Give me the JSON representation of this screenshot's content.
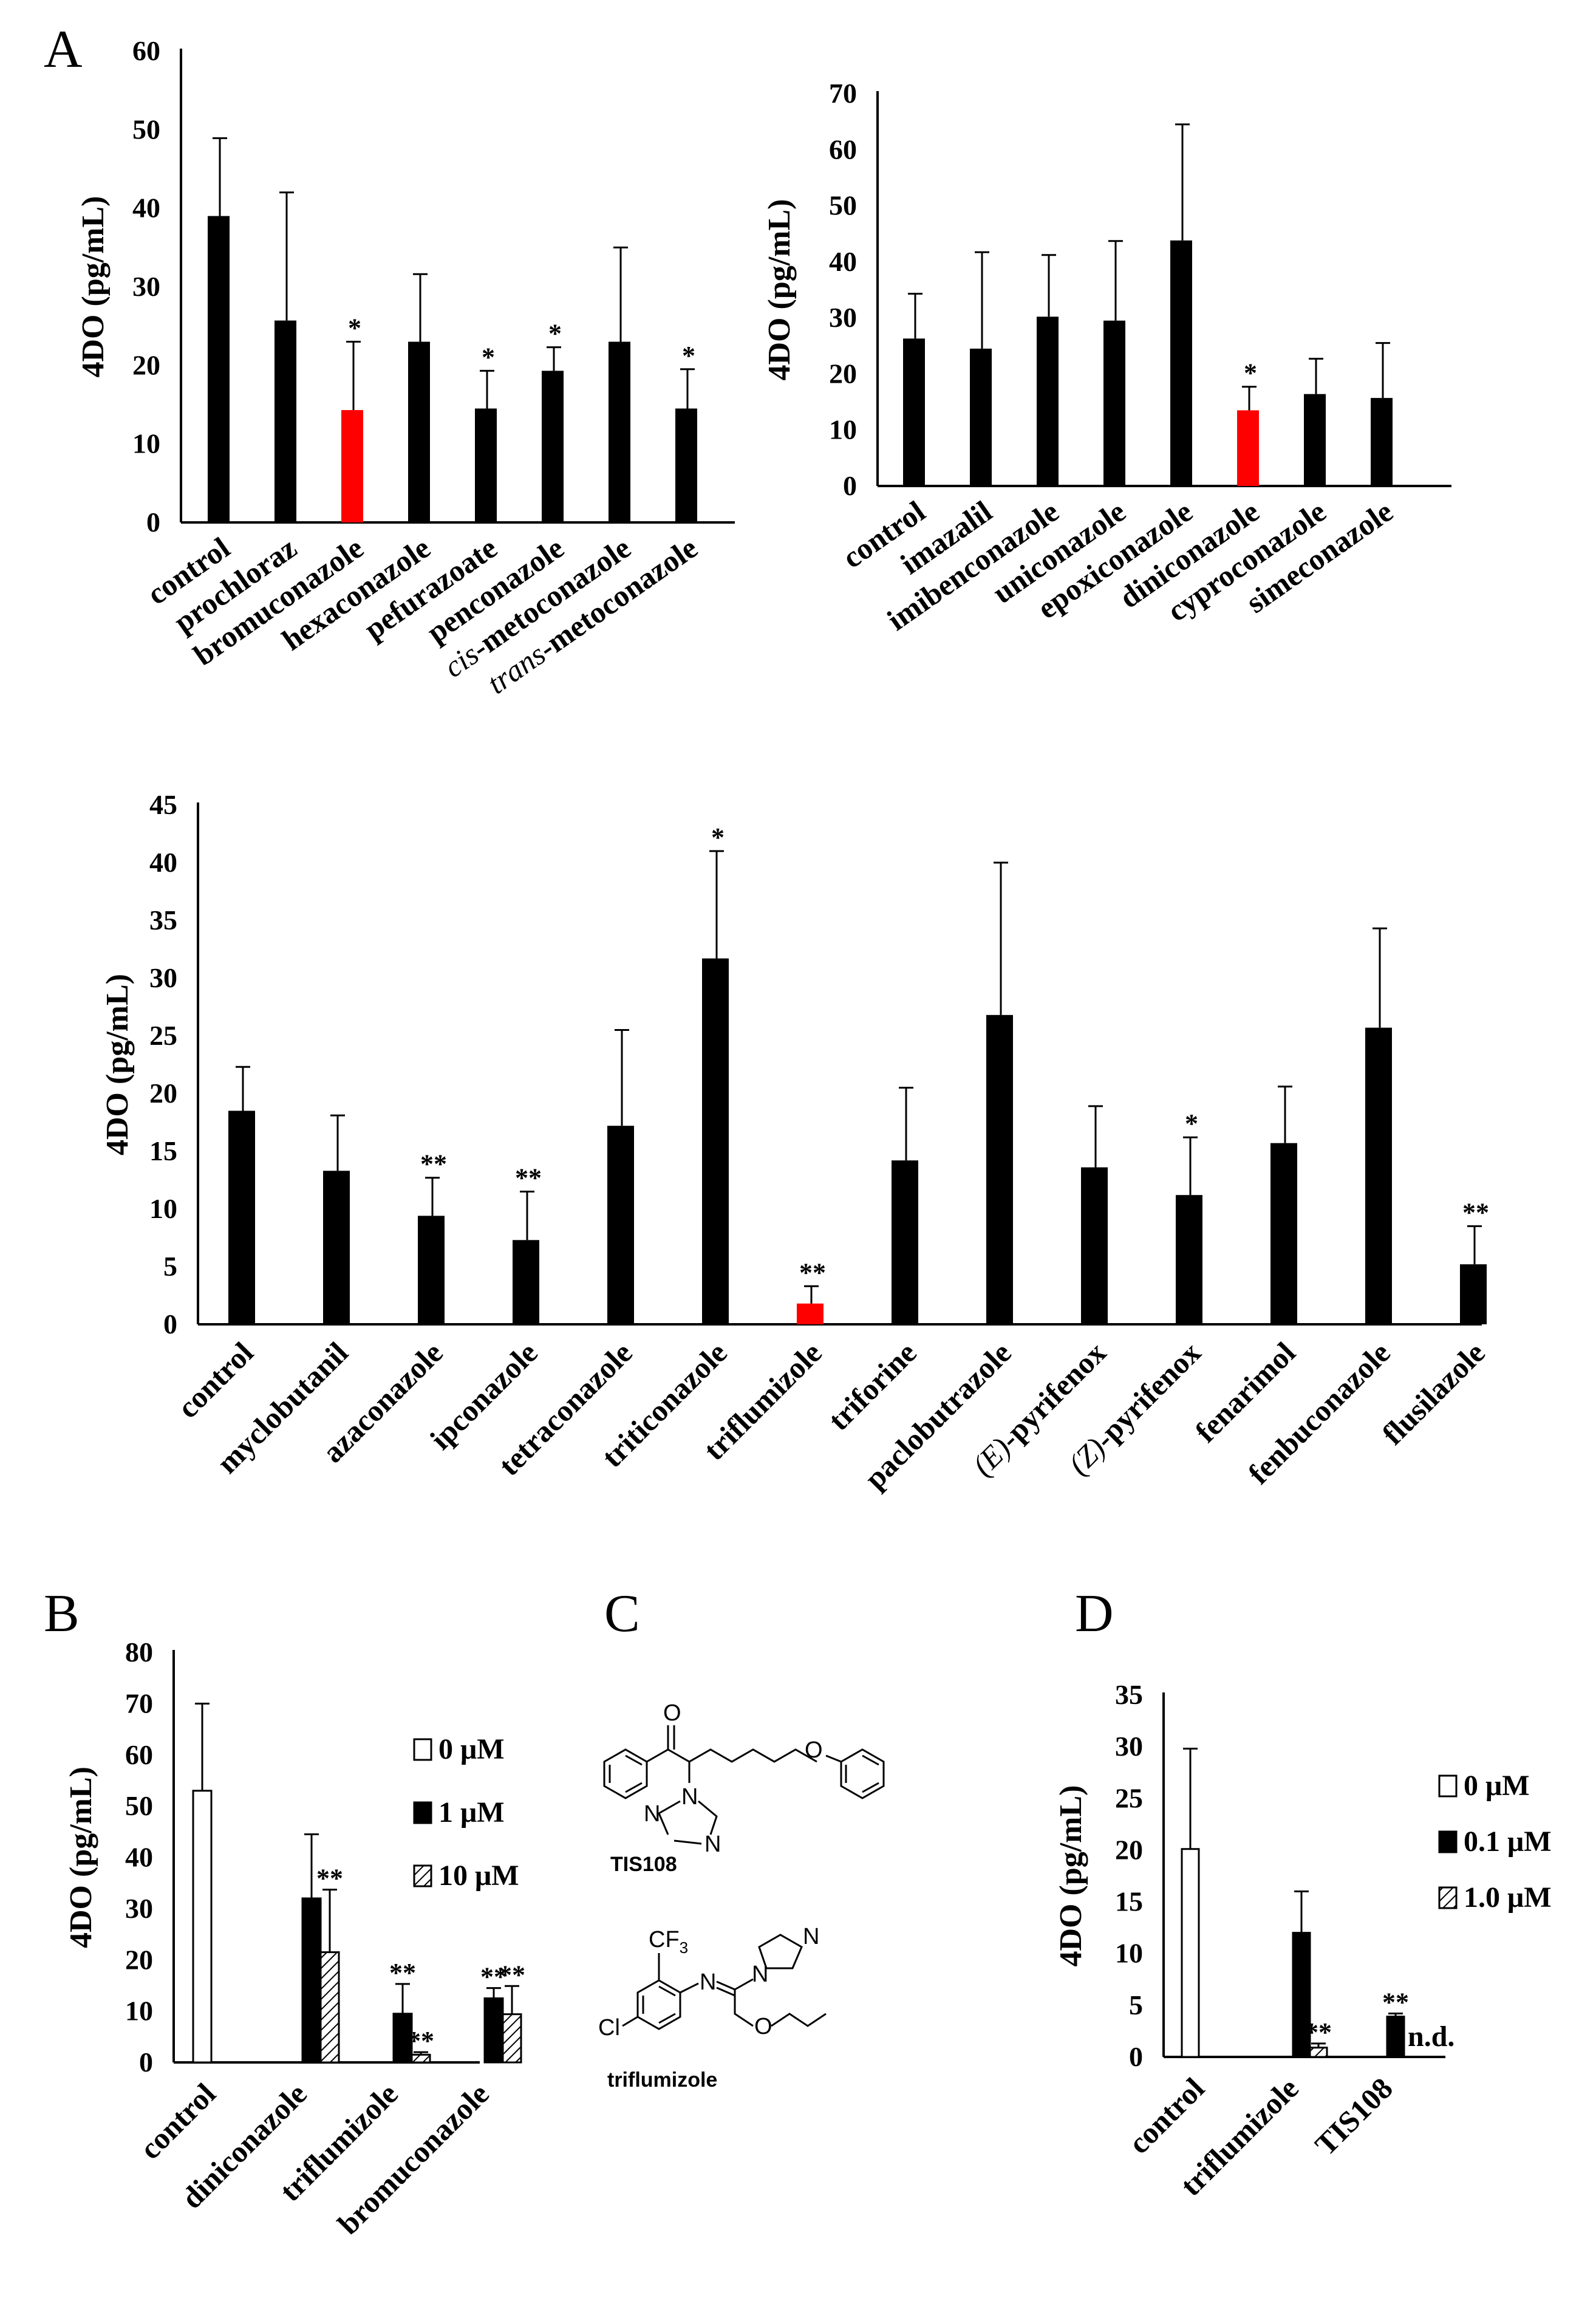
{
  "panels": {
    "A": "A",
    "B": "B",
    "C": "C",
    "D": "D"
  },
  "colors": {
    "bar": "#000000",
    "highlight": "#ff0000",
    "open": "#ffffff"
  },
  "chart_data": [
    {
      "type": "bar",
      "id": "A1",
      "ylabel": "4DO (pg/mL)",
      "ylim": [
        0,
        60
      ],
      "yticks": [
        0,
        10,
        20,
        30,
        40,
        50,
        60
      ],
      "categories": [
        "control",
        "prochloraz",
        "bromuconazole",
        "hexaconazole",
        "pefurazoate",
        "penconazole",
        "cis-metoconazole",
        "trans-metoconazole"
      ],
      "values": [
        39,
        25.7,
        14.3,
        23,
        14.5,
        19.3,
        23,
        14.5
      ],
      "errors": [
        9.9,
        16.3,
        8.7,
        8.6,
        4.8,
        3.0,
        12,
        5.0
      ],
      "stars": [
        "",
        "",
        "*",
        "",
        "*",
        "*",
        "",
        "*"
      ],
      "highlight": [
        2
      ]
    },
    {
      "type": "bar",
      "id": "A2",
      "ylabel": "4DO (pg/mL)",
      "ylim": [
        0,
        70
      ],
      "yticks": [
        0,
        10,
        20,
        30,
        40,
        50,
        60,
        70
      ],
      "categories": [
        "control",
        "imazalil",
        "imibenconazole",
        "uniconazole",
        "epoxiconazole",
        "diniconazole",
        "cyproconazole",
        "simeconazole"
      ],
      "values": [
        26.3,
        24.5,
        30.2,
        29.5,
        43.8,
        13.5,
        16.4,
        15.7
      ],
      "errors": [
        8.0,
        17.2,
        11.0,
        14.2,
        20.7,
        4.2,
        6.3,
        9.8
      ],
      "stars": [
        "",
        "",
        "",
        "",
        "",
        "*",
        "",
        ""
      ],
      "highlight": [
        5
      ]
    },
    {
      "type": "bar",
      "id": "A3",
      "ylabel": "4DO (pg/mL)",
      "ylim": [
        0,
        45
      ],
      "yticks": [
        0,
        5,
        10,
        15,
        20,
        25,
        30,
        35,
        40,
        45
      ],
      "categories": [
        "control",
        "myclobutanil",
        "azaconazole",
        "ipconazole",
        "tetraconazole",
        "triticonazole",
        "triflumizole",
        "triforine",
        "paclobutrazole",
        "(E)-pyrifenox",
        "(Z)-pyrifenox",
        "fenarimol",
        "fenbuconazole",
        "flusilazole"
      ],
      "values": [
        18.5,
        13.3,
        9.4,
        7.3,
        17.2,
        31.7,
        1.8,
        14.2,
        26.8,
        13.6,
        11.2,
        15.7,
        25.7,
        5.2
      ],
      "errors": [
        3.8,
        4.8,
        3.3,
        4.2,
        8.3,
        9.3,
        1.5,
        6.3,
        13.2,
        5.3,
        5.0,
        4.9,
        8.6,
        3.3
      ],
      "stars": [
        "",
        "",
        "**",
        "**",
        "",
        "*",
        "**",
        "",
        "",
        "",
        "*",
        "",
        "",
        "**"
      ],
      "highlight": [
        6
      ]
    },
    {
      "type": "bar",
      "id": "B",
      "ylabel": "4DO (pg/mL)",
      "ylim": [
        0,
        80
      ],
      "yticks": [
        0,
        10,
        20,
        30,
        40,
        50,
        60,
        70,
        80
      ],
      "categories": [
        "control",
        "diniconazole",
        "triflumizole",
        "bromuconazole"
      ],
      "legend": [
        "0 μM",
        "1 μM",
        "10 μM"
      ],
      "series": [
        {
          "name": "0 μM",
          "values": [
            53,
            null,
            null,
            null
          ],
          "errors": [
            17,
            null,
            null,
            null
          ],
          "stars": [
            "",
            "",
            "",
            ""
          ]
        },
        {
          "name": "1 μM",
          "values": [
            null,
            32,
            9.5,
            12.5
          ],
          "errors": [
            null,
            12.5,
            5.8,
            2.0
          ],
          "stars": [
            "",
            "",
            "**",
            "**"
          ]
        },
        {
          "name": "10 μM",
          "values": [
            null,
            21.5,
            1.5,
            9.4
          ],
          "errors": [
            null,
            12.2,
            0.5,
            5.5
          ],
          "stars": [
            "",
            "**",
            "**",
            "**"
          ]
        }
      ]
    },
    {
      "type": "bar",
      "id": "D",
      "ylabel": "4DO (pg/mL)",
      "ylim": [
        0,
        35
      ],
      "yticks": [
        0,
        5,
        10,
        15,
        20,
        25,
        30,
        35
      ],
      "categories": [
        "control",
        "triflumizole",
        "TIS108"
      ],
      "legend": [
        "0 μM",
        "0.1 μM",
        "1.0 μM"
      ],
      "series": [
        {
          "name": "0 μM",
          "values": [
            20.1,
            null,
            null
          ],
          "errors": [
            9.7,
            null,
            null
          ],
          "stars": [
            "",
            "",
            ""
          ]
        },
        {
          "name": "0.1 μM",
          "values": [
            null,
            12,
            3.9
          ],
          "errors": [
            null,
            4.0,
            0.3
          ],
          "stars": [
            "",
            "",
            "**"
          ]
        },
        {
          "name": "1.0 μM",
          "values": [
            null,
            0.9,
            null
          ],
          "errors": [
            null,
            0.4,
            null
          ],
          "stars": [
            "",
            "**",
            ""
          ]
        }
      ],
      "note": "n.d."
    }
  ],
  "structures": {
    "tis108": {
      "name": "TIS108",
      "o": "O",
      "n": "N"
    },
    "triflumizole": {
      "name": "triflumizole",
      "cf3": "CF",
      "cf3_sub": "3",
      "cl": "Cl",
      "n": "N",
      "o": "O"
    }
  }
}
